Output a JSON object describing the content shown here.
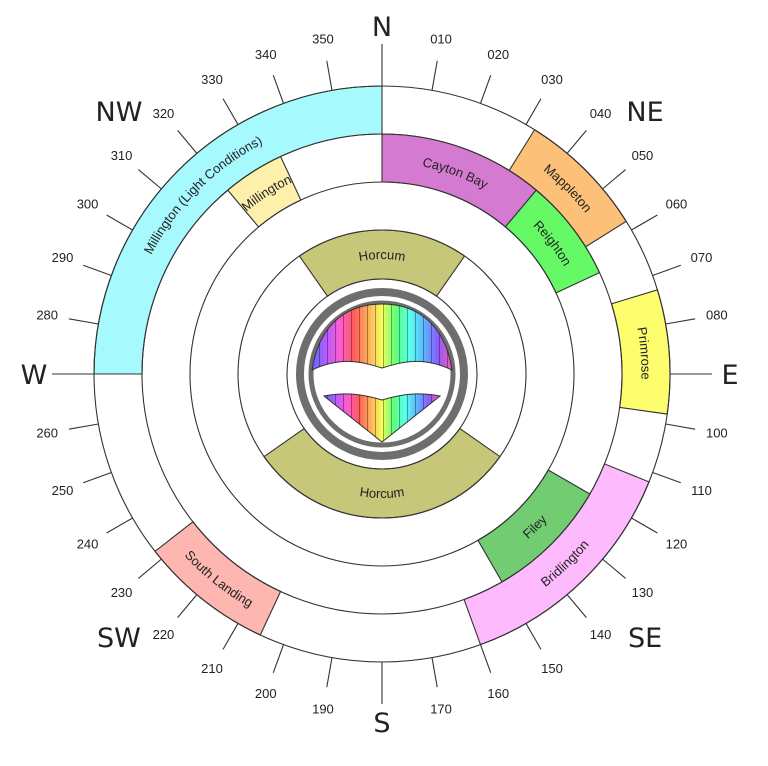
{
  "cardinals": [
    {
      "label": "N",
      "angle": 0
    },
    {
      "label": "NE",
      "angle": 45
    },
    {
      "label": "E",
      "angle": 90
    },
    {
      "label": "SE",
      "angle": 135
    },
    {
      "label": "S",
      "angle": 180
    },
    {
      "label": "SW",
      "angle": 225
    },
    {
      "label": "W",
      "angle": 270
    },
    {
      "label": "NW",
      "angle": 315
    }
  ],
  "degree_labels": [
    "010",
    "020",
    "030",
    "040",
    "050",
    "060",
    "070",
    "080",
    "100",
    "110",
    "120",
    "130",
    "140",
    "150",
    "160",
    "170",
    "190",
    "200",
    "210",
    "220",
    "230",
    "240",
    "250",
    "260",
    "280",
    "290",
    "300",
    "310",
    "320",
    "330",
    "340",
    "350"
  ],
  "segments": [
    {
      "label": "Millington (Light Conditions)",
      "ring": "outer",
      "from": 270,
      "to": 360,
      "color": "#a6fafd"
    },
    {
      "label": "Mappleton",
      "ring": "outer",
      "from": 32,
      "to": 58,
      "color": "#fdc079"
    },
    {
      "label": "Primrose",
      "ring": "outer",
      "from": 73,
      "to": 98,
      "color": "#fdfd6e"
    },
    {
      "label": "Bridlington",
      "ring": "outer",
      "from": 112,
      "to": 160,
      "color": "#fdbbfd"
    },
    {
      "label": "South Landing",
      "ring": "outer",
      "from": 205,
      "to": 232,
      "color": "#fdb6b0"
    },
    {
      "label": "Cayton Bay",
      "ring": "middle",
      "from": 0,
      "to": 40,
      "color": "#d57ad1"
    },
    {
      "label": "Millington",
      "ring": "middle",
      "from": 320,
      "to": 335,
      "color": "#fdf0ab"
    },
    {
      "label": "Reighton",
      "ring": "middle",
      "from": 40,
      "to": 65,
      "color": "#66f966"
    },
    {
      "label": "Filey",
      "ring": "middle",
      "from": 120,
      "to": 150,
      "color": "#72cc72"
    },
    {
      "label": "Horcum",
      "ring": "inner",
      "from": 325,
      "to": 35,
      "color": "#c7c77a"
    },
    {
      "label": "Horcum",
      "ring": "inner",
      "from": 125,
      "to": 235,
      "color": "#c7c77a"
    }
  ]
}
